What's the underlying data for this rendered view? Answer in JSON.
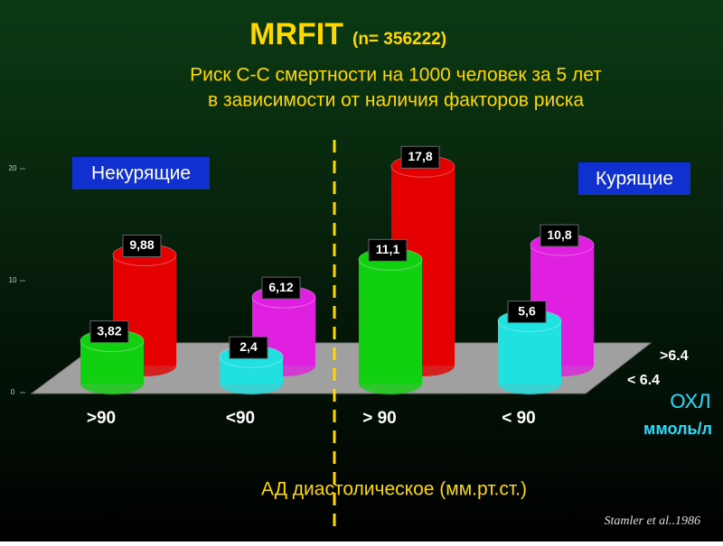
{
  "chart_data": {
    "type": "bar3d",
    "title": "MRFIT",
    "title_note": "(n= 356222)",
    "subtitle": [
      "Риск С-С смертности  на  1000  человек  за 5 лет",
      "в зависимости от наличия  факторов  риска"
    ],
    "groups": [
      "Некурящие",
      "Курящие"
    ],
    "categories": [
      ">90",
      "<90",
      "> 90",
      "< 90"
    ],
    "series": [
      {
        "name": ">6.4",
        "colors": [
          "#e40000",
          "#e020e0",
          "#e40000",
          "#e020e0"
        ],
        "values": [
          9.88,
          6.12,
          17.8,
          10.8
        ],
        "value_labels": [
          "9,88",
          "6,12",
          "17,8",
          "10,8"
        ]
      },
      {
        "name": "< 6.4",
        "colors": [
          "#10d010",
          "#20e0e0",
          "#10d010",
          "#20e0e0"
        ],
        "values": [
          3.82,
          2.4,
          11.1,
          5.6
        ],
        "value_labels": [
          "3,82",
          "2,4",
          "11,1",
          "5,6"
        ]
      }
    ],
    "ylim": [
      0,
      20
    ],
    "yticks": [
      0,
      10,
      20
    ],
    "legend_title": "ОХЛ",
    "legend_unit": "ммоль/л",
    "x_label": "АД диастолическое (мм.рт.ст.)",
    "source": "Stamler et al..1986"
  }
}
